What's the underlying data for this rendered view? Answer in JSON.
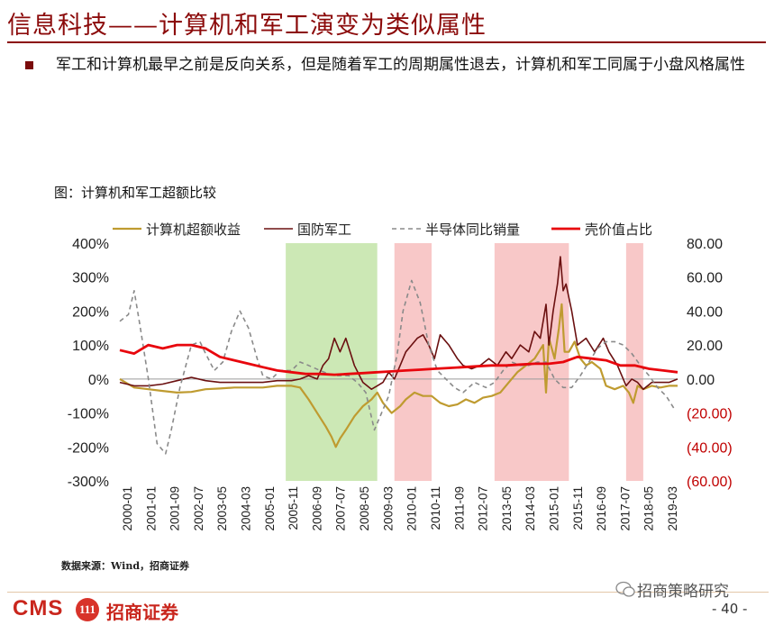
{
  "page": {
    "title": "信息科技——计算机和军工演变为类似属性",
    "bullet": "军工和计算机最早之前是反向关系，但是随着军工的周期属性退去，计算机和军工同属于小盘风格属性",
    "source": "数据来源：Wind，招商证券",
    "logo_cms": "CMS",
    "logo_badge": "111",
    "logo_name": "招商证券",
    "watermark": "招商策略研究",
    "page_number": "- 40 -",
    "accent_color": "#8B0A0A"
  },
  "chart_data": {
    "type": "line",
    "caption": "图：计算机和军工超额比较",
    "left_axis": {
      "ylim": [
        -300,
        400
      ],
      "ticks": [
        "400%",
        "300%",
        "200%",
        "100%",
        "0%",
        "-100%",
        "-200%",
        "-300%"
      ]
    },
    "right_axis": {
      "ylim": [
        -60,
        80
      ],
      "ticks": [
        "80.00",
        "60.00",
        "40.00",
        "20.00",
        "0.00",
        "(20.00)",
        "(40.00)",
        "(60.00)"
      ],
      "negative_color": "#c00000"
    },
    "x_ticks": [
      "2000-01",
      "2001-01",
      "2001-09",
      "2002-07",
      "2003-05",
      "2004-03",
      "2005-01",
      "2005-11",
      "2006-09",
      "2007-07",
      "2008-05",
      "2009-03",
      "2010-01",
      "2010-11",
      "2011-09",
      "2012-07",
      "2013-05",
      "2014-03",
      "2015-01",
      "2015-11",
      "2016-09",
      "2017-07",
      "2018-05",
      "2019-03"
    ],
    "x_range": [
      2000.0,
      2019.5
    ],
    "grid": false,
    "legend_position": "top",
    "shaded_periods": [
      {
        "start": 2005.8,
        "end": 2009.0,
        "color": "#cce8b5"
      },
      {
        "start": 2009.6,
        "end": 2010.9,
        "color": "#f8c8c8"
      },
      {
        "start": 2013.1,
        "end": 2015.7,
        "color": "#f8c8c8"
      },
      {
        "start": 2017.7,
        "end": 2018.3,
        "color": "#f8c8c8"
      }
    ],
    "series": [
      {
        "name": "计算机超额收益",
        "axis": "left",
        "color": "#BF9B30",
        "dash": "none",
        "width": 2.2,
        "x": [
          2000.0,
          2000.5,
          2001.0,
          2001.5,
          2002.0,
          2002.5,
          2003.0,
          2003.5,
          2004.0,
          2004.5,
          2005.0,
          2005.5,
          2006.0,
          2006.3,
          2006.6,
          2006.9,
          2007.2,
          2007.4,
          2007.55,
          2007.7,
          2007.9,
          2008.2,
          2008.5,
          2008.8,
          2009.0,
          2009.2,
          2009.5,
          2009.8,
          2010.0,
          2010.3,
          2010.6,
          2010.9,
          2011.2,
          2011.5,
          2011.8,
          2012.1,
          2012.4,
          2012.7,
          2013.0,
          2013.3,
          2013.6,
          2013.9,
          2014.2,
          2014.5,
          2014.8,
          2014.9,
          2015.0,
          2015.2,
          2015.35,
          2015.45,
          2015.55,
          2015.7,
          2015.9,
          2016.1,
          2016.3,
          2016.5,
          2016.8,
          2017.0,
          2017.3,
          2017.6,
          2017.8,
          2017.95,
          2018.1,
          2018.3,
          2018.6,
          2018.9,
          2019.2,
          2019.5
        ],
        "y": [
          0,
          -25,
          -30,
          -35,
          -40,
          -38,
          -30,
          -28,
          -25,
          -25,
          -25,
          -20,
          -20,
          -25,
          -60,
          -100,
          -140,
          -170,
          -200,
          -175,
          -150,
          -110,
          -80,
          -60,
          -40,
          -70,
          -100,
          -80,
          -60,
          -40,
          -50,
          -50,
          -70,
          -80,
          -75,
          -60,
          -70,
          -55,
          -50,
          -40,
          -10,
          20,
          40,
          60,
          100,
          -40,
          120,
          60,
          150,
          220,
          80,
          80,
          110,
          60,
          40,
          50,
          30,
          -20,
          -30,
          -20,
          -40,
          -70,
          -20,
          -30,
          -20,
          -25,
          -20,
          -20
        ]
      },
      {
        "name": "国防军工",
        "axis": "left",
        "color": "#6B1010",
        "dash": "none",
        "width": 1.6,
        "x": [
          2000.0,
          2000.5,
          2001.0,
          2001.5,
          2002.0,
          2002.5,
          2003.0,
          2003.5,
          2004.0,
          2004.5,
          2005.0,
          2005.5,
          2006.0,
          2006.3,
          2006.6,
          2006.9,
          2007.1,
          2007.3,
          2007.5,
          2007.7,
          2007.9,
          2008.2,
          2008.5,
          2008.8,
          2009.0,
          2009.2,
          2009.4,
          2009.6,
          2009.8,
          2010.0,
          2010.2,
          2010.4,
          2010.6,
          2010.8,
          2011.0,
          2011.2,
          2011.5,
          2011.8,
          2012.0,
          2012.3,
          2012.6,
          2012.9,
          2013.2,
          2013.5,
          2013.7,
          2014.0,
          2014.3,
          2014.5,
          2014.7,
          2014.9,
          2015.0,
          2015.15,
          2015.3,
          2015.4,
          2015.5,
          2015.6,
          2015.8,
          2016.0,
          2016.3,
          2016.6,
          2016.9,
          2017.1,
          2017.4,
          2017.7,
          2017.9,
          2018.1,
          2018.3,
          2018.6,
          2018.9,
          2019.2,
          2019.5
        ],
        "y": [
          -10,
          -20,
          -20,
          -15,
          -5,
          5,
          -5,
          -10,
          -10,
          -10,
          -10,
          -5,
          -5,
          0,
          10,
          0,
          40,
          60,
          120,
          80,
          120,
          40,
          -10,
          -30,
          -20,
          -10,
          20,
          0,
          40,
          80,
          100,
          120,
          130,
          100,
          60,
          130,
          100,
          60,
          40,
          30,
          40,
          60,
          40,
          80,
          60,
          100,
          80,
          140,
          120,
          220,
          100,
          200,
          280,
          360,
          260,
          280,
          200,
          100,
          120,
          80,
          120,
          80,
          40,
          -20,
          0,
          -10,
          -30,
          -10,
          -10,
          -10,
          0
        ]
      },
      {
        "name": "半导体同比销量",
        "axis": "right",
        "color": "#8A8A8A",
        "dash": "5,4",
        "width": 1.6,
        "x": [
          2000.0,
          2000.3,
          2000.5,
          2000.7,
          2001.0,
          2001.3,
          2001.6,
          2001.8,
          2002.1,
          2002.5,
          2002.8,
          2003.0,
          2003.3,
          2003.6,
          2003.9,
          2004.2,
          2004.5,
          2004.8,
          2005.0,
          2005.3,
          2005.6,
          2006.0,
          2006.3,
          2006.6,
          2007.0,
          2007.3,
          2007.6,
          2008.0,
          2008.3,
          2008.6,
          2008.9,
          2009.1,
          2009.4,
          2009.7,
          2009.9,
          2010.2,
          2010.5,
          2010.8,
          2011.1,
          2011.4,
          2011.7,
          2012.0,
          2012.4,
          2012.8,
          2013.1,
          2013.4,
          2013.7,
          2014.0,
          2014.3,
          2014.6,
          2014.9,
          2015.2,
          2015.5,
          2015.8,
          2016.1,
          2016.4,
          2016.7,
          2017.0,
          2017.3,
          2017.6,
          2017.9,
          2018.2,
          2018.5,
          2018.8,
          2019.1,
          2019.4
        ],
        "y": [
          34,
          38,
          52,
          32,
          0,
          -38,
          -44,
          -30,
          -5,
          20,
          22,
          15,
          5,
          10,
          28,
          40,
          30,
          12,
          2,
          0,
          5,
          5,
          10,
          8,
          5,
          3,
          2,
          2,
          -2,
          -8,
          -30,
          -22,
          -10,
          15,
          40,
          58,
          45,
          20,
          5,
          0,
          -5,
          -8,
          -2,
          -5,
          -2,
          5,
          10,
          8,
          8,
          10,
          10,
          0,
          -5,
          -5,
          2,
          10,
          18,
          22,
          22,
          20,
          15,
          8,
          2,
          -5,
          -10,
          -18
        ]
      },
      {
        "name": "壳价值占比",
        "axis": "right",
        "color": "#E8060D",
        "dash": "none",
        "width": 2.8,
        "x": [
          2000.0,
          2000.5,
          2001.0,
          2001.5,
          2002.0,
          2002.5,
          2003.0,
          2003.5,
          2004.0,
          2004.5,
          2005.0,
          2005.5,
          2006.0,
          2006.5,
          2007.0,
          2007.5,
          2008.0,
          2008.5,
          2009.0,
          2009.5,
          2010.0,
          2010.5,
          2011.0,
          2011.5,
          2012.0,
          2012.5,
          2013.0,
          2013.5,
          2014.0,
          2014.5,
          2015.0,
          2015.5,
          2016.0,
          2016.5,
          2017.0,
          2017.5,
          2018.0,
          2018.5,
          2019.0,
          2019.5
        ],
        "y": [
          17,
          15,
          20,
          18,
          20,
          20,
          18,
          13,
          11,
          9,
          7,
          5,
          4,
          3,
          3,
          2.5,
          3,
          3.5,
          4,
          4.5,
          5,
          5.5,
          6,
          6.5,
          7,
          7.5,
          8,
          8,
          8.5,
          9,
          9,
          10,
          13,
          12,
          11,
          8,
          8,
          6,
          5,
          4
        ]
      }
    ]
  }
}
